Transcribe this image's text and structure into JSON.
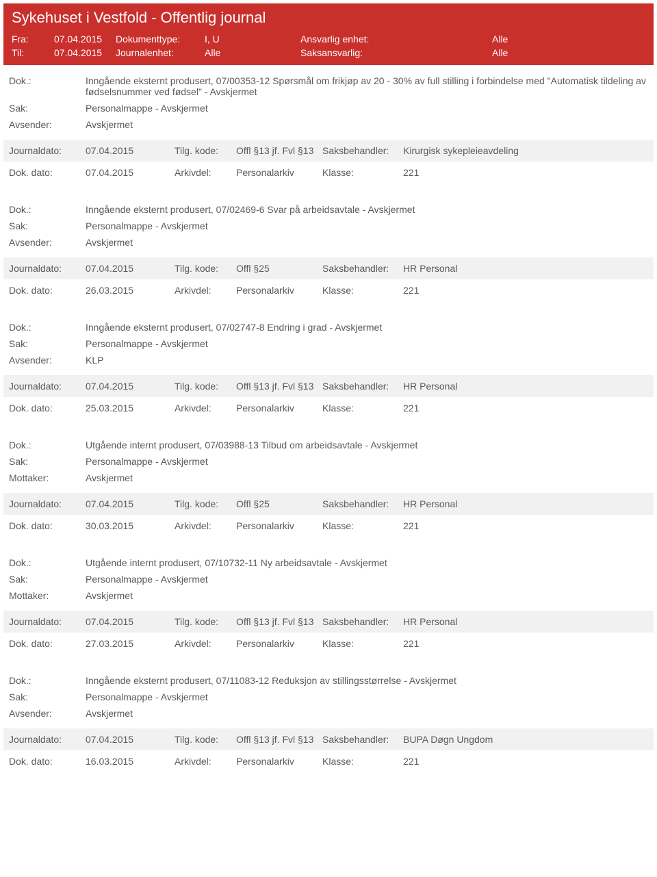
{
  "header": {
    "title": "Sykehuset i Vestfold - Offentlig journal",
    "fra_label": "Fra:",
    "fra_value": "07.04.2015",
    "til_label": "Til:",
    "til_value": "07.04.2015",
    "doktype_label": "Dokumenttype:",
    "doktype_value": "I, U",
    "journalenhet_label": "Journalenhet:",
    "journalenhet_value": "Alle",
    "ansvarlig_label": "Ansvarlig enhet:",
    "ansvarlig_value": "Alle",
    "saksansvarlig_label": "Saksansvarlig:",
    "saksansvarlig_value": "Alle"
  },
  "labels": {
    "dok": "Dok.:",
    "sak": "Sak:",
    "avsender": "Avsender:",
    "mottaker": "Mottaker:",
    "journaldato": "Journaldato:",
    "dokdato": "Dok. dato:",
    "tilgkode": "Tilg. kode:",
    "arkivdel": "Arkivdel:",
    "saksbehandler": "Saksbehandler:",
    "klasse": "Klasse:"
  },
  "entries": [
    {
      "dok": "Inngående eksternt produsert, 07/00353-12 Spørsmål om frikjøp av 20 - 30% av full stilling i forbindelse med \"Automatisk tildeling av fødselsnummer ved fødsel\" - Avskjermet",
      "sak": "Personalmappe - Avskjermet",
      "party_label": "Avsender:",
      "party_value": "Avskjermet",
      "journaldato": "07.04.2015",
      "tilgkode": "Offl §13 jf. Fvl §13",
      "saksbehandler": "Kirurgisk sykepleieavdeling",
      "dokdato": "07.04.2015",
      "arkivdel": "Personalarkiv",
      "klasse": "221"
    },
    {
      "dok": "Inngående eksternt produsert, 07/02469-6 Svar på arbeidsavtale - Avskjermet",
      "sak": "Personalmappe - Avskjermet",
      "party_label": "Avsender:",
      "party_value": "Avskjermet",
      "journaldato": "07.04.2015",
      "tilgkode": "Offl §25",
      "saksbehandler": "HR Personal",
      "dokdato": "26.03.2015",
      "arkivdel": "Personalarkiv",
      "klasse": "221"
    },
    {
      "dok": "Inngående eksternt produsert, 07/02747-8 Endring i grad - Avskjermet",
      "sak": "Personalmappe - Avskjermet",
      "party_label": "Avsender:",
      "party_value": "KLP",
      "journaldato": "07.04.2015",
      "tilgkode": "Offl §13 jf. Fvl §13",
      "saksbehandler": "HR Personal",
      "dokdato": "25.03.2015",
      "arkivdel": "Personalarkiv",
      "klasse": "221"
    },
    {
      "dok": "Utgående internt produsert, 07/03988-13 Tilbud om arbeidsavtale - Avskjermet",
      "sak": "Personalmappe - Avskjermet",
      "party_label": "Mottaker:",
      "party_value": "Avskjermet",
      "journaldato": "07.04.2015",
      "tilgkode": "Offl §25",
      "saksbehandler": "HR Personal",
      "dokdato": "30.03.2015",
      "arkivdel": "Personalarkiv",
      "klasse": "221"
    },
    {
      "dok": "Utgående internt produsert, 07/10732-11 Ny arbeidsavtale - Avskjermet",
      "sak": "Personalmappe - Avskjermet",
      "party_label": "Mottaker:",
      "party_value": "Avskjermet",
      "journaldato": "07.04.2015",
      "tilgkode": "Offl §13 jf. Fvl §13",
      "saksbehandler": "HR Personal",
      "dokdato": "27.03.2015",
      "arkivdel": "Personalarkiv",
      "klasse": "221"
    },
    {
      "dok": "Inngående eksternt produsert, 07/11083-12 Reduksjon av stillingsstørrelse - Avskjermet",
      "sak": "Personalmappe - Avskjermet",
      "party_label": "Avsender:",
      "party_value": "Avskjermet",
      "journaldato": "07.04.2015",
      "tilgkode": "Offl §13 jf. Fvl §13",
      "saksbehandler": "BUPA Døgn Ungdom",
      "dokdato": "16.03.2015",
      "arkivdel": "Personalarkiv",
      "klasse": "221"
    }
  ]
}
